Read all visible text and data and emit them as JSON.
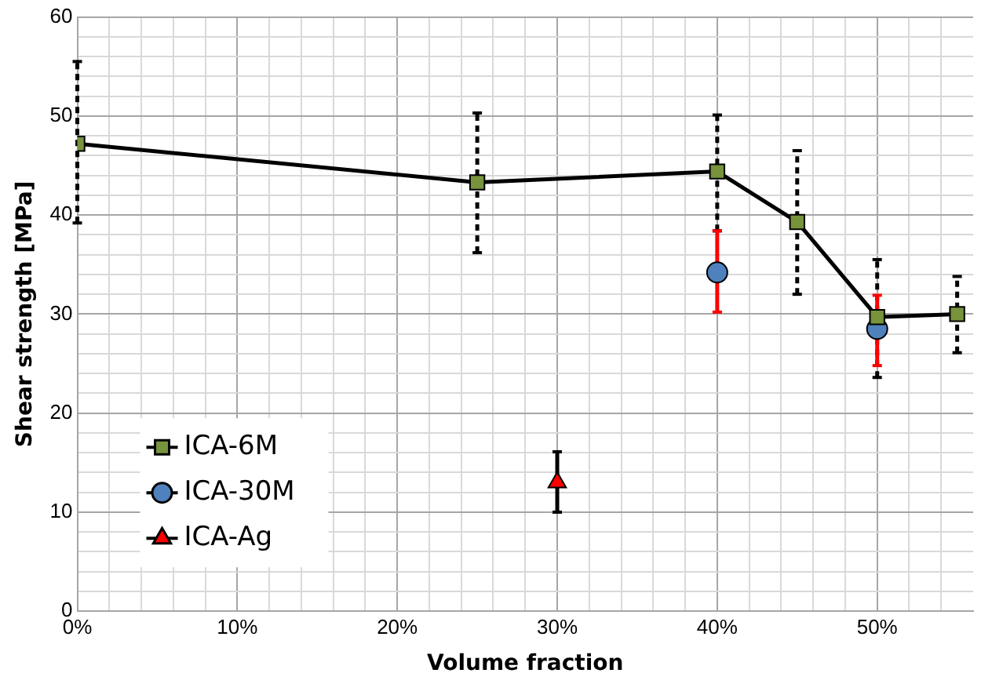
{
  "chart_data": {
    "type": "scatter",
    "xlabel": "Volume fraction",
    "ylabel": "Shear strength [MPa]",
    "xlim": [
      0,
      0.56
    ],
    "xticks": [
      {
        "value": 0,
        "label": "0%"
      },
      {
        "value": 0.02,
        "label": null
      },
      {
        "value": 0.04,
        "label": null
      },
      {
        "value": 0.06,
        "label": null
      },
      {
        "value": 0.08,
        "label": null
      },
      {
        "value": 0.1,
        "label": "10%"
      },
      {
        "value": 0.12,
        "label": null
      },
      {
        "value": 0.14,
        "label": null
      },
      {
        "value": 0.16,
        "label": null
      },
      {
        "value": 0.18,
        "label": null
      },
      {
        "value": 0.2,
        "label": "20%"
      },
      {
        "value": 0.22,
        "label": null
      },
      {
        "value": 0.24,
        "label": null
      },
      {
        "value": 0.26,
        "label": null
      },
      {
        "value": 0.28,
        "label": null
      },
      {
        "value": 0.3,
        "label": "30%"
      },
      {
        "value": 0.32,
        "label": null
      },
      {
        "value": 0.34,
        "label": null
      },
      {
        "value": 0.36,
        "label": null
      },
      {
        "value": 0.38,
        "label": null
      },
      {
        "value": 0.4,
        "label": "40%"
      },
      {
        "value": 0.42,
        "label": null
      },
      {
        "value": 0.44,
        "label": null
      },
      {
        "value": 0.46,
        "label": null
      },
      {
        "value": 0.48,
        "label": null
      },
      {
        "value": 0.5,
        "label": "50%"
      },
      {
        "value": 0.52,
        "label": null
      },
      {
        "value": 0.54,
        "label": null
      }
    ],
    "ylim": [
      0,
      60
    ],
    "yticks": [
      0,
      {
        "value": 2,
        "label": null
      },
      {
        "value": 4,
        "label": null
      },
      {
        "value": 6,
        "label": null
      },
      {
        "value": 8,
        "label": null
      },
      10,
      {
        "value": 12,
        "label": null
      },
      {
        "value": 14,
        "label": null
      },
      {
        "value": 16,
        "label": null
      },
      {
        "value": 18,
        "label": null
      },
      20,
      {
        "value": 22,
        "label": null
      },
      {
        "value": 24,
        "label": null
      },
      {
        "value": 26,
        "label": null
      },
      {
        "value": 28,
        "label": null
      },
      30,
      {
        "value": 32,
        "label": null
      },
      {
        "value": 34,
        "label": null
      },
      {
        "value": 36,
        "label": null
      },
      {
        "value": 38,
        "label": null
      },
      40,
      {
        "value": 42,
        "label": null
      },
      {
        "value": 44,
        "label": null
      },
      {
        "value": 46,
        "label": null
      },
      {
        "value": 48,
        "label": null
      },
      50,
      {
        "value": 52,
        "label": null
      },
      {
        "value": 54,
        "label": null
      },
      {
        "value": 56,
        "label": null
      },
      {
        "value": 58,
        "label": null
      },
      60
    ],
    "grid": true,
    "legend": "bottom left",
    "series": [
      {
        "name": "ICA-6M",
        "type": "line",
        "color": "#77933c",
        "marker": "square",
        "line_style": "solid",
        "x": [
          0,
          0.25,
          0.4,
          0.45,
          0.5,
          0.55
        ],
        "values": [
          47.2,
          43.3,
          44.4,
          39.3,
          29.7,
          30
        ],
        "errors": [
          [
            39.2,
            55.5
          ],
          [
            36.2,
            50.3
          ],
          [
            38.4,
            50.1
          ],
          [
            32,
            46.5
          ],
          [
            23.6,
            35.5
          ],
          [
            26.1,
            33.8
          ]
        ]
      },
      {
        "name": "ICA-30M",
        "type": "scatter",
        "color": "#4f81bd",
        "marker": "circle",
        "x": [
          0.4,
          0.5
        ],
        "values": [
          34.2,
          28.5
        ],
        "errors": [
          [
            30.2,
            38.4
          ],
          [
            24.8,
            31.9
          ]
        ]
      },
      {
        "name": "ICA-Ag",
        "type": "scatter",
        "color": "#ff0000",
        "marker": "triangle",
        "x": [
          0.3
        ],
        "values": [
          13
        ],
        "errors": [
          [
            10,
            16.1
          ]
        ]
      }
    ]
  }
}
